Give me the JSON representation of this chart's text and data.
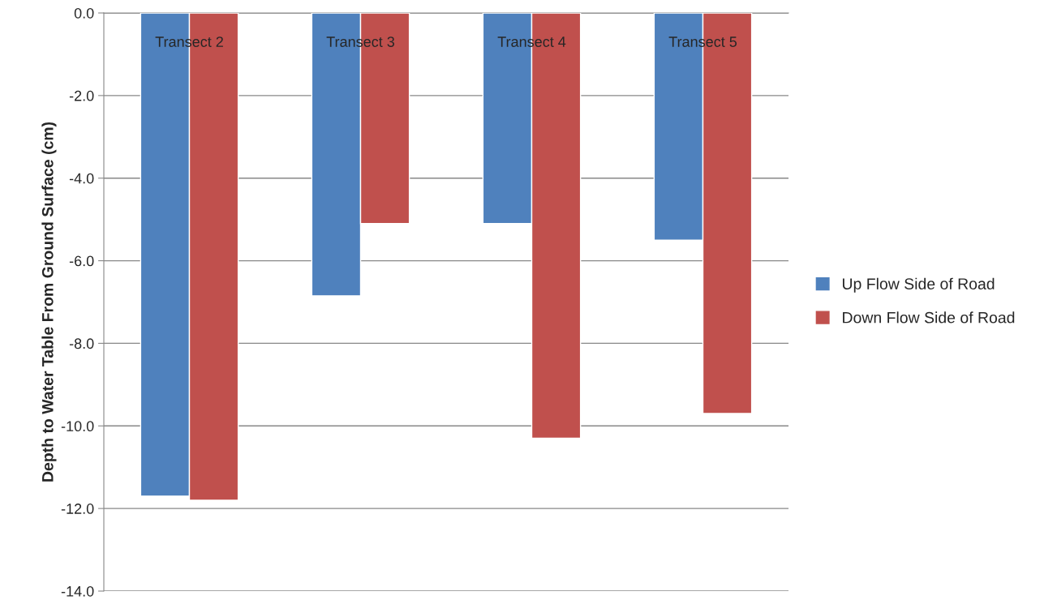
{
  "chart_data": {
    "type": "bar",
    "ylabel": "Depth to Water Table From Ground Surface (cm)",
    "categories": [
      "Transect 2",
      "Transect 3",
      "Transect 4",
      "Transect 5"
    ],
    "series": [
      {
        "name": "Up Flow Side of Road",
        "color": "#4f81bd",
        "values": [
          -11.7,
          -6.85,
          -5.1,
          -5.5
        ]
      },
      {
        "name": "Down Flow Side of Road",
        "color": "#c0504d",
        "values": [
          -11.8,
          -5.1,
          -10.3,
          -9.7
        ]
      }
    ],
    "ylim": [
      -14,
      0
    ],
    "yticks": [
      {
        "value": 0,
        "label": "0.0"
      },
      {
        "value": -2,
        "label": "-2.0"
      },
      {
        "value": -4,
        "label": "-4.0"
      },
      {
        "value": -6,
        "label": "-6.0"
      },
      {
        "value": -8,
        "label": "-8.0"
      },
      {
        "value": -10,
        "label": "-10.0"
      },
      {
        "value": -12,
        "label": "-12.0"
      },
      {
        "value": -14,
        "label": "-14.0"
      }
    ],
    "grid": "y",
    "legend": "right"
  }
}
